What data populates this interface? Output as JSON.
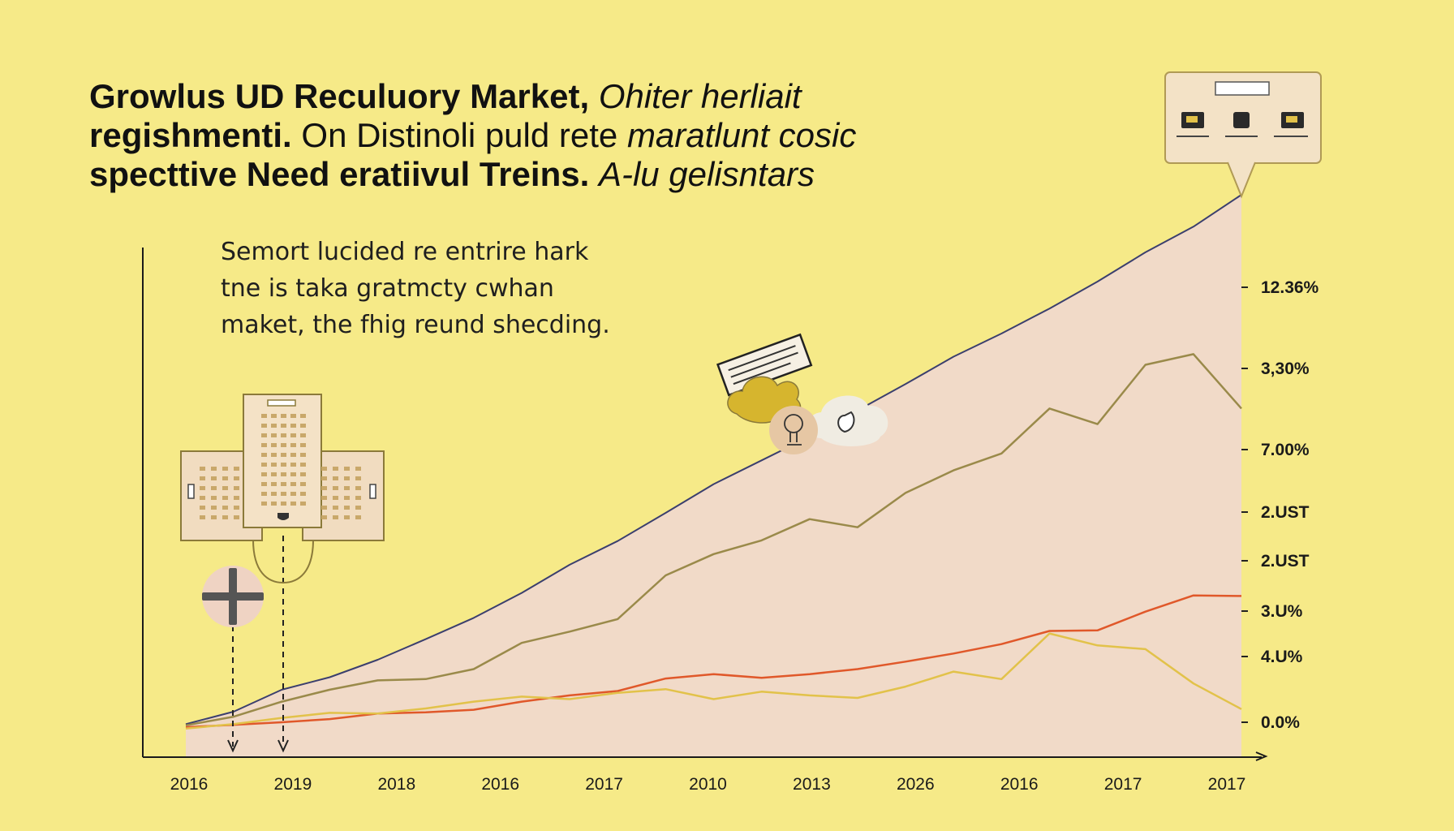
{
  "title": {
    "line1_bold": "Growlus UD Reculuory Market,",
    "line1_italic": "Ohiter herliait",
    "line2_bold": "regishmenti.",
    "line2_regular": "On Distinoli puld rete",
    "line2_italic": "maratlunt cosic",
    "line3_bold": "specttive Need eratiivul Treins.",
    "line3_italic": "A-lu gelisntars"
  },
  "annotation": {
    "line1": "Semort lucided re entrire hark",
    "line2": "tne is taka gratmcty cwhan",
    "line3": "maket, the fhig reund shecding."
  },
  "icons": {
    "tower": "office-building-icon",
    "compass": "compass-cross-icon",
    "device": "browser-window-icon",
    "document": "document-card-icon",
    "cloud": "cloud-icon",
    "bulb": "lightbulb-icon",
    "speech": "speech-bubble-icon"
  },
  "colors": {
    "background": "#f6ea88",
    "area_fill": "#f1dac8",
    "series_top": "#3b3f6e",
    "series_olive": "#9a8a4a",
    "series_orange": "#e0582a",
    "series_yellow": "#e2c24a"
  },
  "chart_data": {
    "type": "line",
    "x_tick_labels": [
      "2016",
      "2019",
      "2018",
      "2016",
      "2017",
      "2010",
      "2013",
      "2026",
      "2016",
      "2017",
      "2017"
    ],
    "y_tick_labels": [
      "12.36%",
      "3,30%",
      "7.00%",
      "2.UST",
      "2.UST",
      "3.U%",
      "4.U%",
      "0.0%"
    ],
    "x": [
      0,
      0.5,
      1,
      1.5,
      2,
      2.5,
      3,
      3.5,
      4,
      4.5,
      5,
      5.5,
      6,
      6.5,
      7,
      7.5,
      8,
      8.5,
      9,
      9.5,
      10,
      10.5,
      11
    ],
    "series": [
      {
        "values": [
          1.0,
          3.0,
          6.5,
          8.5,
          11.3,
          14.6,
          18.0,
          22.0,
          26.5,
          30.3,
          34.8,
          39.4,
          43.2,
          47.0,
          51.2,
          55.4,
          59.8,
          63.5,
          67.5,
          71.8,
          76.5,
          80.6,
          85.7
        ]
      },
      {
        "values": [
          0.8,
          2.2,
          4.6,
          6.5,
          8.0,
          8.2,
          9.8,
          14.0,
          15.8,
          17.8,
          24.8,
          28.2,
          30.4,
          33.8,
          32.5,
          38.0,
          41.6,
          44.3,
          51.5,
          49.0,
          58.5,
          60.2,
          51.5
        ]
      },
      {
        "values": [
          0.5,
          0.9,
          1.3,
          1.8,
          2.7,
          2.9,
          3.3,
          4.6,
          5.6,
          6.3,
          8.3,
          9.0,
          8.4,
          9.0,
          9.8,
          11.0,
          12.3,
          13.8,
          15.9,
          16.0,
          19.0,
          21.6,
          21.5
        ]
      },
      {
        "values": [
          0.3,
          1.0,
          2.0,
          2.8,
          2.7,
          3.5,
          4.6,
          5.4,
          5.0,
          6.0,
          6.6,
          5.0,
          6.2,
          5.6,
          5.2,
          7.0,
          9.4,
          8.2,
          15.5,
          13.6,
          13.0,
          7.5,
          3.4
        ]
      }
    ]
  }
}
